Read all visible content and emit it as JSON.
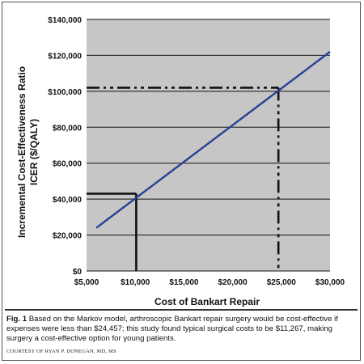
{
  "chart_data": {
    "type": "line",
    "xlabel": "Cost of Bankart Repair",
    "ylabel_line1": "Incremental Cost-Effectiveness Ratio",
    "ylabel_line2": "ICER ($/QALY)",
    "xlim": [
      5000,
      30000
    ],
    "ylim": [
      0,
      140000
    ],
    "x_ticks": [
      5000,
      10000,
      15000,
      20000,
      25000,
      30000
    ],
    "x_tick_labels": [
      "$5,000",
      "$10,000",
      "$15,000",
      "$20,000",
      "$25,000",
      "$30,000"
    ],
    "y_ticks": [
      0,
      20000,
      40000,
      60000,
      80000,
      100000,
      120000,
      140000
    ],
    "y_tick_labels": [
      "$0",
      "$20,000",
      "$40,000",
      "$60,000",
      "$80,000",
      "$100,000",
      "$120,000",
      "$140,000"
    ],
    "grid": true,
    "background_color": "#c6c6c6",
    "series": [
      {
        "x": [
          6000,
          30000
        ],
        "y": [
          24000,
          122000
        ],
        "color": "#2b3f97"
      }
    ],
    "reference_lines": [
      {
        "style": "solid",
        "x": 10100,
        "y": 43000,
        "color": "#111111"
      },
      {
        "style": "dash-dot",
        "x": 24700,
        "y": 102000,
        "color": "#111111"
      }
    ]
  },
  "caption": {
    "label": "Fig. 1",
    "text": " Based on the Markov model, arthroscopic Bankart repair surgery would be cost-effective if expenses were less than $24,457; this study found typical surgical costs to be $11,267, making surgery a cost-effective option for young patients."
  },
  "credit": "COURTESY OF RYAN P. DONEGAN, MD, MS"
}
